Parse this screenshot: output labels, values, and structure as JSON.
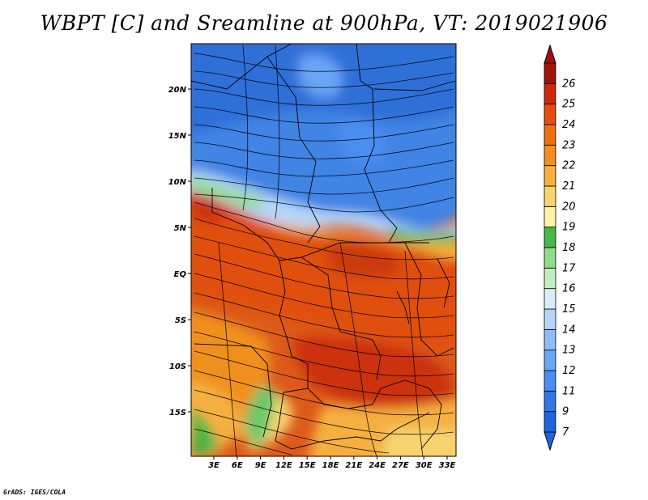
{
  "title": "WBPT [C] and Sreamline at 900hPa, VT: 2019021906",
  "credit": "GrADS: IGES/COLA",
  "map": {
    "lat_labels": [
      "20N",
      "15N",
      "10N",
      "5N",
      "EQ",
      "5S",
      "10S",
      "15S"
    ],
    "lon_labels": [
      "3E",
      "6E",
      "9E",
      "12E",
      "15E",
      "18E",
      "21E",
      "24E",
      "27E",
      "30E",
      "33E"
    ]
  },
  "colorbar": {
    "labels": [
      "7",
      "9",
      "11",
      "12",
      "13",
      "14",
      "15",
      "16",
      "17",
      "18",
      "19",
      "20",
      "21",
      "22",
      "23",
      "24",
      "25",
      "26"
    ],
    "colors": [
      "#1e64dc",
      "#2f78e6",
      "#4a8ff0",
      "#6aa6f5",
      "#8fbdf7",
      "#b6d5f9",
      "#d9ecf7",
      "#c4ecc0",
      "#8fdc8a",
      "#48b648",
      "#fbf3a8",
      "#f8d470",
      "#f5b040",
      "#f09020",
      "#ec7010",
      "#e44e10",
      "#cc2a0c",
      "#a0120a"
    ],
    "low_color": "#1e64dc",
    "high_color": "#a0120a"
  }
}
